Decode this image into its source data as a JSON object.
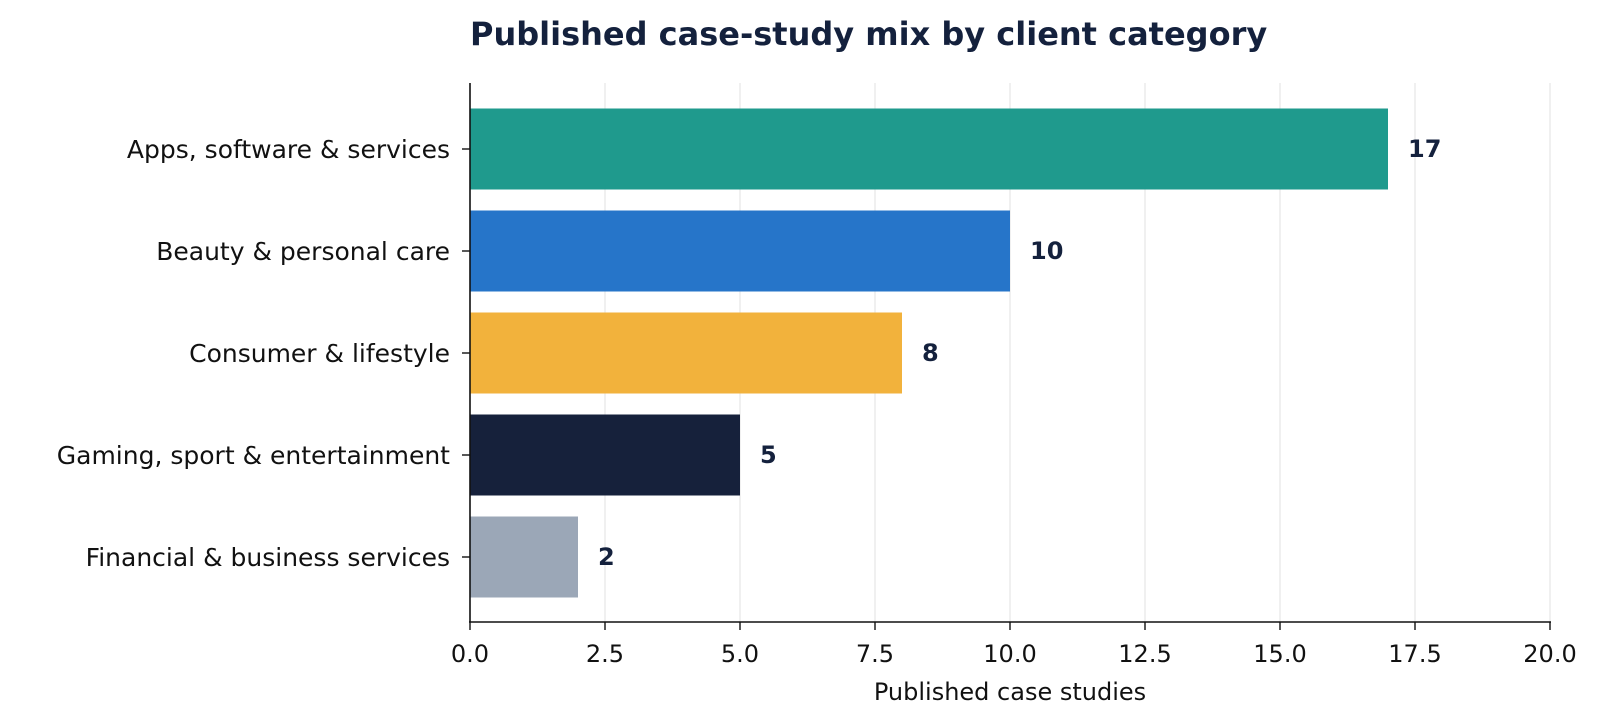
{
  "chart_data": {
    "type": "bar",
    "orientation": "horizontal",
    "title": "Published case-study mix by client category",
    "xlabel": "Published case studies",
    "ylabel": "",
    "xlim": [
      0,
      20
    ],
    "xticks": [
      0,
      2.5,
      5,
      7.5,
      10,
      12.5,
      15,
      17.5,
      20
    ],
    "xtick_labels": [
      "0.0",
      "2.5",
      "5.0",
      "7.5",
      "10.0",
      "12.5",
      "15.0",
      "17.5",
      "20.0"
    ],
    "grid": "vertical",
    "legend": "none",
    "categories": [
      "Apps, software & services",
      "Beauty & personal care",
      "Consumer & lifestyle",
      "Gaming, sport & entertainment",
      "Financial & business services"
    ],
    "values": [
      17,
      10,
      8,
      5,
      2
    ],
    "value_labels": [
      "17",
      "10",
      "8",
      "5",
      "2"
    ],
    "colors": [
      "#1f9a8d",
      "#2675c9",
      "#f2b23c",
      "#16213b",
      "#9ba7b7"
    ]
  }
}
